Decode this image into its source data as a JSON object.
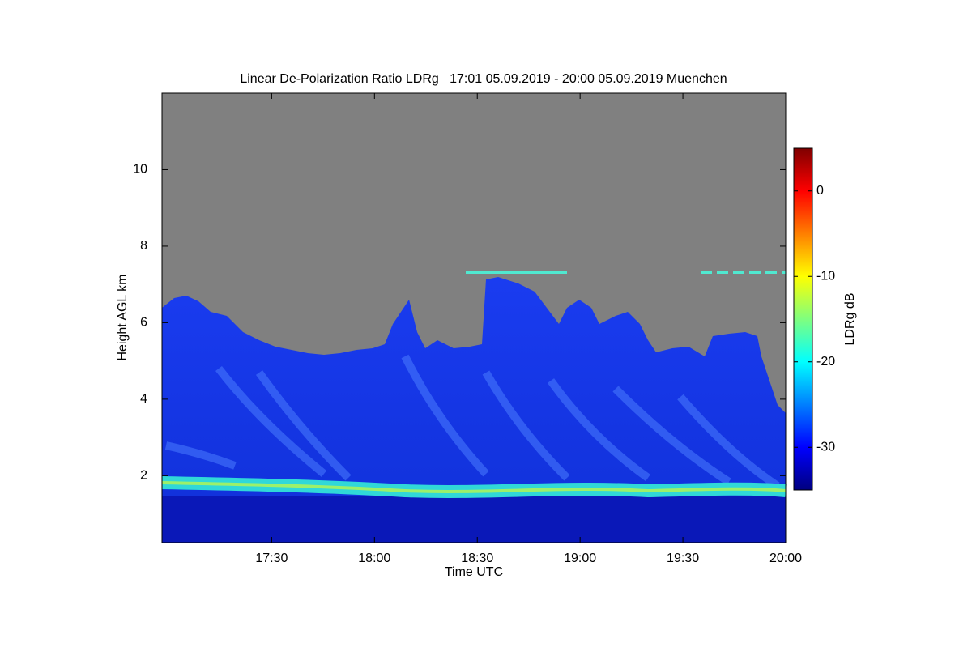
{
  "chart_data": {
    "type": "heatmap",
    "title": "Linear De-Polarization Ratio LDRg   17:01 05.09.2019 - 20:00 05.09.2019 Muenchen",
    "x_label": "Time UTC",
    "y_label": "Height AGL km",
    "xlim": [
      1018,
      1200
    ],
    "xticks": [
      {
        "value": 1050,
        "label": "17:30"
      },
      {
        "value": 1080,
        "label": "18:00"
      },
      {
        "value": 1110,
        "label": "18:30"
      },
      {
        "value": 1140,
        "label": "19:00"
      },
      {
        "value": 1170,
        "label": "19:30"
      },
      {
        "value": 1200,
        "label": "20:00"
      }
    ],
    "ylim": [
      0.25,
      12
    ],
    "yticks": [
      2,
      4,
      6,
      8,
      10
    ],
    "colorbar": {
      "label": "LDRg dB",
      "lim": [
        -35,
        5
      ],
      "ticks": [
        0,
        -10,
        -20,
        -30
      ],
      "colormap": "jet"
    }
  }
}
